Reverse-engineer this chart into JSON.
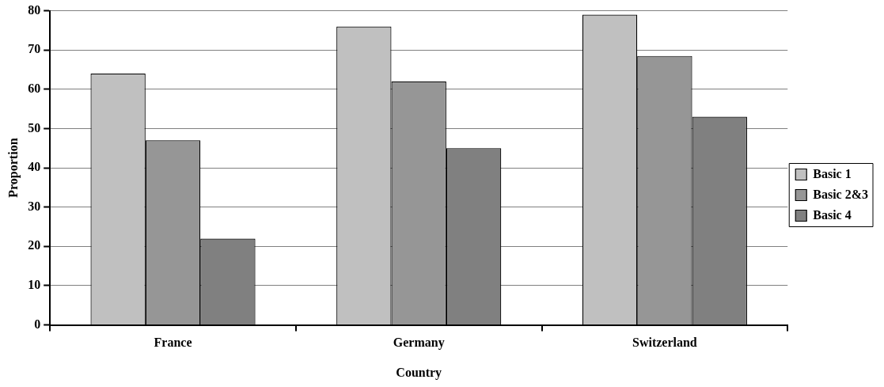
{
  "chart_data": {
    "type": "bar",
    "xlabel": "Country",
    "ylabel": "Proportion",
    "categories": [
      "France",
      "Germany",
      "Switzerland"
    ],
    "series": [
      {
        "name": "Basic 1",
        "color": "#c0c0c0",
        "values": [
          64,
          76,
          79
        ]
      },
      {
        "name": "Basic 2&3",
        "color": "#969696",
        "values": [
          47,
          62,
          68.5
        ]
      },
      {
        "name": "Basic 4",
        "color": "#808080",
        "values": [
          22,
          45,
          53
        ]
      }
    ],
    "ylim": [
      0,
      80
    ],
    "yticks": [
      0,
      10,
      20,
      30,
      40,
      50,
      60,
      70,
      80
    ],
    "grid": "y",
    "legend": "right"
  }
}
